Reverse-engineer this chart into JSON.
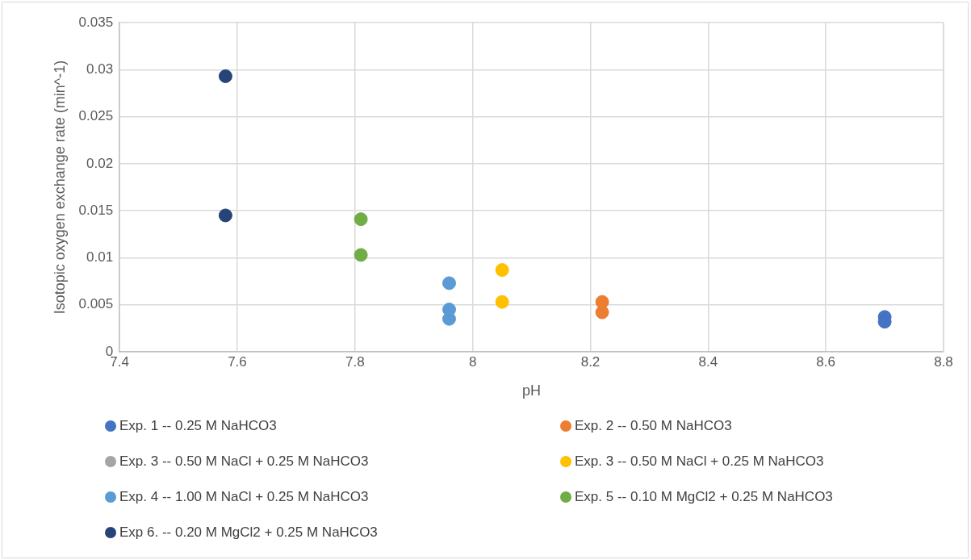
{
  "chart_data": {
    "type": "scatter",
    "xlabel": "pH",
    "ylabel": "Isotopic oxygen exchange rate (min^-1)",
    "xlim": [
      7.4,
      8.8
    ],
    "xticks": [
      7.4,
      7.6,
      7.8,
      8,
      8.2,
      8.4,
      8.6,
      8.8
    ],
    "ylim": [
      0,
      0.035
    ],
    "yticks": [
      0,
      0.005,
      0.01,
      0.015,
      0.02,
      0.025,
      0.03,
      0.035
    ],
    "grid": true,
    "legend": "bottom",
    "marker": "circle",
    "series": [
      {
        "name": "Exp. 1 -- 0.25 M NaHCO3",
        "color": "#4472c4",
        "x": [
          8.7,
          8.7
        ],
        "values": [
          0.0037,
          0.0032
        ]
      },
      {
        "name": "Exp. 2 -- 0.50 M NaHCO3",
        "color": "#ed7d31",
        "x": [
          8.22,
          8.22
        ],
        "values": [
          0.0053,
          0.0042
        ]
      },
      {
        "name": "Exp. 3 -- 0.50 M NaCl + 0.25 M NaHCO3",
        "color": "#a5a5a5"
      },
      {
        "name": "Exp. 3 -- 0.50 M NaCl + 0.25 M NaHCO3",
        "color": "#ffc000",
        "x": [
          8.05,
          8.05
        ],
        "values": [
          0.0087,
          0.0053
        ]
      },
      {
        "name": "Exp. 4 -- 1.00 M NaCl + 0.25 M NaHCO3",
        "color": "#5b9bd5",
        "x": [
          7.96,
          7.96,
          7.96
        ],
        "values": [
          0.0073,
          0.0045,
          0.0035
        ]
      },
      {
        "name": "Exp. 5 -- 0.10 M MgCl2 + 0.25 M NaHCO3",
        "color": "#70ad47",
        "x": [
          7.81,
          7.81
        ],
        "values": [
          0.0141,
          0.0103
        ]
      },
      {
        "name": "Exp 6. -- 0.20 M MgCl2 + 0.25 M NaHCO3",
        "color": "#264478",
        "x": [
          7.58,
          7.58
        ],
        "values": [
          0.0293,
          0.0145
        ]
      }
    ]
  }
}
